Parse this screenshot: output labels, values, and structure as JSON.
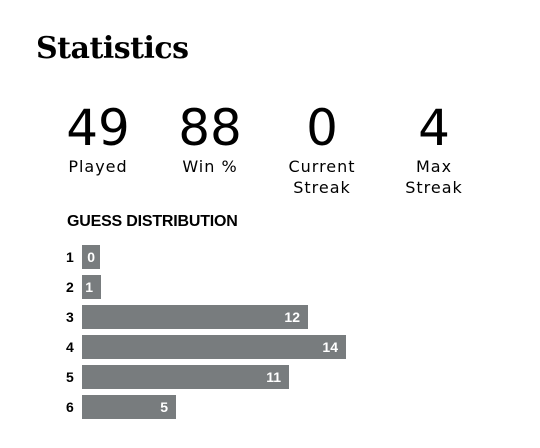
{
  "title": "Statistics",
  "stats": [
    {
      "value": "49",
      "label_line1": "Played",
      "label_line2": ""
    },
    {
      "value": "88",
      "label_line1": "Win %",
      "label_line2": ""
    },
    {
      "value": "0",
      "label_line1": "Current",
      "label_line2": "Streak"
    },
    {
      "value": "4",
      "label_line1": "Max",
      "label_line2": "Streak"
    }
  ],
  "distribution": {
    "heading": "GUESS DISTRIBUTION",
    "bar_color": "#787c7e",
    "rows": [
      {
        "guess": "1",
        "count": 0
      },
      {
        "guess": "2",
        "count": 1
      },
      {
        "guess": "3",
        "count": 12
      },
      {
        "guess": "4",
        "count": 14
      },
      {
        "guess": "5",
        "count": 11
      },
      {
        "guess": "6",
        "count": 5
      }
    ]
  }
}
